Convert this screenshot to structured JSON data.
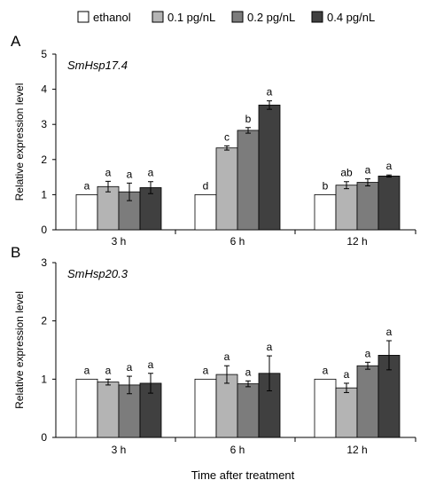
{
  "legend": [
    {
      "label": "ethanol",
      "color": "#ffffff"
    },
    {
      "label": "0.1 pg/nL",
      "color": "#b4b4b4"
    },
    {
      "label": "0.2 pg/nL",
      "color": "#7c7c7c"
    },
    {
      "label": "0.4 pg/nL",
      "color": "#404040"
    }
  ],
  "xlabel": "Time after treatment",
  "chart_data": [
    {
      "type": "bar",
      "panel_label": "A",
      "gene": "SmHsp17.4",
      "ylabel": "Relative expression level",
      "ylim": [
        0,
        5
      ],
      "yticks": [
        "0",
        "1",
        "2",
        "3",
        "4",
        "5"
      ],
      "categories": [
        "3 h",
        "6 h",
        "12 h"
      ],
      "series": [
        {
          "name": "ethanol",
          "values": [
            1.0,
            1.0,
            1.0
          ],
          "errors": [
            0,
            0,
            0
          ],
          "letters": [
            "a",
            "d",
            "b"
          ]
        },
        {
          "name": "0.1 pg/nL",
          "values": [
            1.23,
            2.33,
            1.27
          ],
          "errors": [
            0.15,
            0.06,
            0.1
          ],
          "letters": [
            "a",
            "c",
            "ab"
          ]
        },
        {
          "name": "0.2 pg/nL",
          "values": [
            1.08,
            2.83,
            1.35
          ],
          "errors": [
            0.25,
            0.08,
            0.1
          ],
          "letters": [
            "a",
            "b",
            "a"
          ]
        },
        {
          "name": "0.4 pg/nL",
          "values": [
            1.2,
            3.55,
            1.53
          ],
          "errors": [
            0.17,
            0.12,
            0.03
          ],
          "letters": [
            "a",
            "a",
            "a"
          ]
        }
      ]
    },
    {
      "type": "bar",
      "panel_label": "B",
      "gene": "SmHsp20.3",
      "ylabel": "Relative expression level",
      "ylim": [
        0,
        3
      ],
      "yticks": [
        "0",
        "1",
        "2",
        "3"
      ],
      "categories": [
        "3 h",
        "6 h",
        "12 h"
      ],
      "series": [
        {
          "name": "ethanol",
          "values": [
            1.0,
            1.0,
            1.0
          ],
          "errors": [
            0,
            0,
            0
          ],
          "letters": [
            "a",
            "a",
            "a"
          ]
        },
        {
          "name": "0.1 pg/nL",
          "values": [
            0.95,
            1.08,
            0.85
          ],
          "errors": [
            0.05,
            0.15,
            0.08
          ],
          "letters": [
            "a",
            "a",
            "a"
          ]
        },
        {
          "name": "0.2 pg/nL",
          "values": [
            0.9,
            0.92,
            1.23
          ],
          "errors": [
            0.15,
            0.05,
            0.06
          ],
          "letters": [
            "a",
            "a",
            "a"
          ]
        },
        {
          "name": "0.4 pg/nL",
          "values": [
            0.93,
            1.1,
            1.41
          ],
          "errors": [
            0.17,
            0.3,
            0.25
          ],
          "letters": [
            "a",
            "a",
            "a"
          ]
        }
      ]
    }
  ]
}
